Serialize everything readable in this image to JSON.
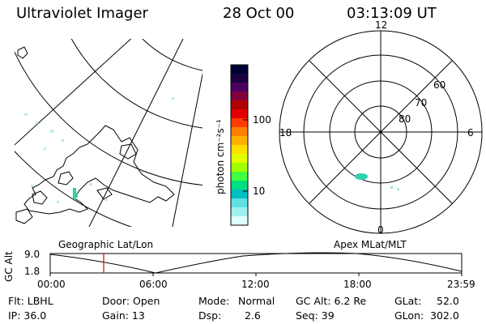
{
  "header": {
    "instrument": "Ultraviolet Imager",
    "date": "28 Oct 00",
    "time": "03:13:09 UT"
  },
  "geo_panel": {
    "label": "Geographic Lat/Lon"
  },
  "polar_panel": {
    "label": "Apex MLat/MLT",
    "mlt_top": "12",
    "mlt_left": "18",
    "mlt_right": "6",
    "mlt_bottom": "0",
    "lat_60": "60",
    "lat_70": "70",
    "lat_80": "80"
  },
  "colorbar": {
    "unit_label": "photon cm⁻²s⁻¹",
    "tick_100": "100",
    "tick_10": "10",
    "colors": [
      "#000033",
      "#1a0040",
      "#4b0060",
      "#80003c",
      "#b00000",
      "#e00000",
      "#ff3c00",
      "#ff8000",
      "#ffb000",
      "#ffe000",
      "#e0ff00",
      "#a0ff00",
      "#40ff40",
      "#00e080",
      "#00c0c0",
      "#60e0e0",
      "#a0f0f0",
      "#e0ffff"
    ]
  },
  "altitude_plot": {
    "ylabel": "GC Alt",
    "y_top": "9.0",
    "y_bottom": "1.8",
    "x_ticks": [
      "00:00",
      "06:00",
      "12:00",
      "18:00",
      "23:59"
    ],
    "marker_time": "03:13"
  },
  "info": {
    "filter": "Flt: LBHL",
    "ip": "IP: 36.0",
    "door": "Door: Open",
    "gain": "Gain: 13",
    "mode_label": "Mode:",
    "mode_value": "Normal",
    "dsp_label": "Dsp:",
    "dsp_value": "2.6",
    "gc_alt": "GC Alt: 6.2 Re",
    "seq": "Seq: 39",
    "glat_label": "GLat:",
    "glat_value": "52.0",
    "glon_label": "GLon:",
    "glon_value": "302.0"
  }
}
